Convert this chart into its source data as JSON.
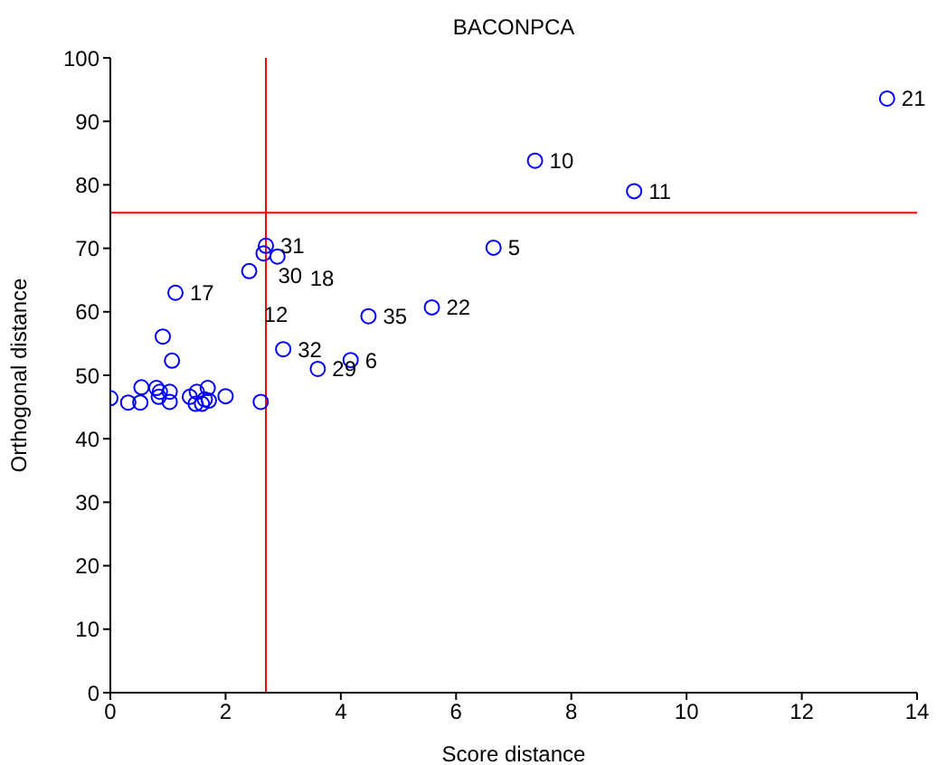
{
  "chart_data": {
    "type": "scatter",
    "title": "BACONPCA",
    "xlabel": "Score distance",
    "ylabel": "Orthogonal distance",
    "x": [
      13.48,
      7.37,
      9.09,
      6.65,
      5.58,
      4.48,
      4.17,
      3.6,
      3.0,
      2.7,
      2.66,
      2.9,
      2.41,
      1.13,
      0.91,
      1.07,
      0.0,
      0.31,
      0.52,
      0.54,
      0.8,
      0.86,
      0.84,
      1.03,
      1.03,
      1.38,
      1.5,
      1.48,
      1.59,
      1.64,
      1.69,
      1.71,
      2.0,
      2.61
    ],
    "values": [
      93.6,
      83.8,
      79.0,
      70.1,
      60.7,
      59.3,
      52.4,
      51.0,
      54.1,
      70.4,
      69.2,
      68.7,
      66.4,
      63.0,
      56.1,
      52.3,
      46.4,
      45.7,
      45.7,
      48.1,
      48.0,
      47.4,
      46.6,
      47.4,
      45.8,
      46.6,
      47.4,
      45.5,
      45.5,
      46.2,
      48.0,
      46.0,
      46.7,
      45.8
    ],
    "color": "#0000ff",
    "marker": "circle",
    "xlim": [
      0,
      14
    ],
    "xticks": [
      0,
      2,
      4,
      6,
      8,
      10,
      12,
      14
    ],
    "ylim": [
      0,
      100
    ],
    "yticks": [
      0,
      10,
      20,
      30,
      40,
      50,
      60,
      70,
      80,
      90,
      100
    ],
    "ref_lines": [
      {
        "axis": "x",
        "value": 2.7,
        "color": "#ff0000"
      },
      {
        "axis": "y",
        "value": 75.6,
        "color": "#ff0000"
      }
    ],
    "annotations": [
      {
        "text": "21",
        "x": 13.48,
        "y": 93.6
      },
      {
        "text": "10",
        "x": 7.37,
        "y": 83.8
      },
      {
        "text": "11",
        "x": 9.09,
        "y": 79.0
      },
      {
        "text": "5",
        "x": 6.65,
        "y": 70.1
      },
      {
        "text": "22",
        "x": 5.58,
        "y": 60.7
      },
      {
        "text": "35",
        "x": 4.48,
        "y": 59.3
      },
      {
        "text": "6",
        "x": 4.17,
        "y": 52.4
      },
      {
        "text": "29",
        "x": 3.6,
        "y": 51.0
      },
      {
        "text": "32",
        "x": 3.0,
        "y": 54.1
      },
      {
        "text": "31",
        "x": 2.7,
        "y": 70.4
      },
      {
        "text": "30",
        "x": 2.66,
        "y": 69.2
      },
      {
        "text": "18",
        "x": 2.9,
        "y": 68.7
      },
      {
        "text": "12",
        "x": 2.41,
        "y": 66.4
      },
      {
        "text": "17",
        "x": 1.13,
        "y": 63.0
      }
    ]
  }
}
